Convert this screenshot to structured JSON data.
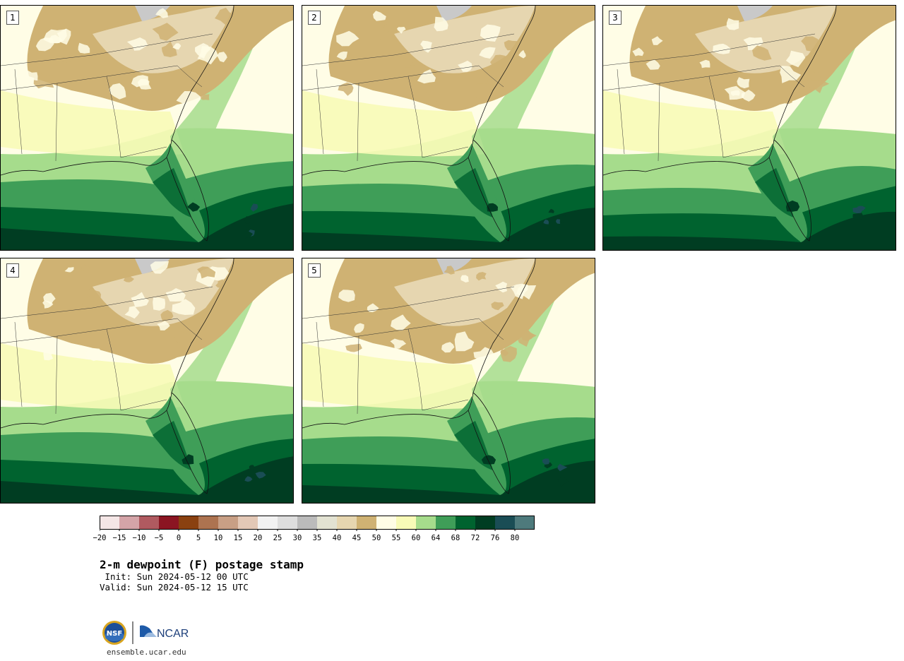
{
  "panels": [
    {
      "label": "1",
      "variant": 0
    },
    {
      "label": "2",
      "variant": 1
    },
    {
      "label": "3",
      "variant": 2
    },
    {
      "label": "4",
      "variant": 3
    },
    {
      "label": "5",
      "variant": 4
    }
  ],
  "colorbar": {
    "colors": [
      "#f4e6e6",
      "#d4a4a8",
      "#b05a60",
      "#8b1522",
      "#8a4110",
      "#ad7350",
      "#c89f85",
      "#e3c8b6",
      "#f2f2f2",
      "#dedede",
      "#bbbbbb",
      "#e2e2d2",
      "#e6d6b0",
      "#cfb273",
      "#fffde6",
      "#f8fbb7",
      "#a6dc8c",
      "#3f9e58",
      "#00632f",
      "#003d22",
      "#1a4d55",
      "#4e7a7c"
    ],
    "ticks": [
      "−20",
      "−15",
      "−10",
      "−5",
      "0",
      "5",
      "10",
      "15",
      "20",
      "25",
      "30",
      "35",
      "40",
      "45",
      "50",
      "55",
      "60",
      "64",
      "68",
      "72",
      "76",
      "80"
    ]
  },
  "title": "2-m dewpoint (F) postage stamp",
  "init_line": " Init: Sun 2024-05-12 00 UTC",
  "valid_line": "Valid: Sun 2024-05-12 15 UTC",
  "logos": {
    "nsf_text": "NSF",
    "ncar_text": "NCAR"
  },
  "site": "ensemble.ucar.edu"
}
